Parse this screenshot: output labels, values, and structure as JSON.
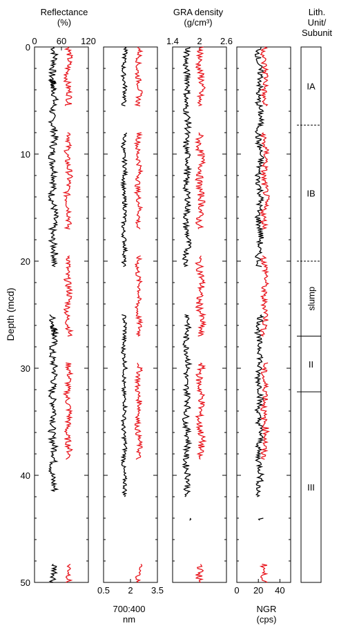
{
  "chart_data": {
    "type": "line",
    "y_axis": {
      "label": "Depth (mcd)",
      "range": [
        0,
        50
      ],
      "ticks": [
        0,
        10,
        20,
        30,
        40,
        50
      ],
      "inverted": true
    },
    "colors": {
      "series_a": "#000000",
      "series_b": "#e8141c"
    },
    "panels": [
      {
        "title_line1": "Reflectance",
        "title_line2": "(%)",
        "axis_position": "top",
        "xrange": [
          0,
          120
        ],
        "ticks": [
          "0",
          "60",
          "120"
        ],
        "tick_values": [
          0,
          60,
          120
        ],
        "black_segments": [
          [
            0,
            4
          ],
          [
            3,
            20.5
          ],
          [
            25,
            27
          ],
          [
            26,
            41.5
          ],
          [
            48.3,
            50
          ]
        ],
        "red_segments": [
          [
            0,
            5.5
          ],
          [
            8,
            17
          ],
          [
            19.5,
            27
          ],
          [
            29.5,
            38.5
          ],
          [
            48.3,
            50
          ]
        ],
        "black_center": 42,
        "black_amp": 8,
        "red_center": 75,
        "red_amp": 7
      },
      {
        "title_line1": "700:400",
        "title_line2": "nm",
        "axis_position": "bottom",
        "xrange": [
          0.5,
          3.5
        ],
        "ticks": [
          "0.5",
          "2",
          "3.5"
        ],
        "tick_values": [
          0.5,
          2,
          3.5
        ],
        "black_segments": [
          [
            0,
            5.5
          ],
          [
            8,
            20.5
          ],
          [
            25,
            42
          ]
        ],
        "red_segments": [
          [
            0,
            5.5
          ],
          [
            8,
            17
          ],
          [
            19.5,
            27
          ],
          [
            29.5,
            38.5
          ],
          [
            48.3,
            50
          ]
        ],
        "black_center": 1.65,
        "black_amp": 0.12,
        "red_center": 2.45,
        "red_amp": 0.15
      },
      {
        "title_line1": "GRA density",
        "title_line2": "(g/cm³)",
        "axis_position": "top",
        "xrange": [
          1.4,
          2.6
        ],
        "ticks": [
          "1.4",
          "2",
          "2.6"
        ],
        "tick_values": [
          1.4,
          2,
          2.6
        ],
        "black_segments": [
          [
            0,
            20.5
          ],
          [
            25,
            42
          ],
          [
            44,
            44.2
          ]
        ],
        "red_segments": [
          [
            0,
            5.5
          ],
          [
            8,
            17
          ],
          [
            19.5,
            27
          ],
          [
            29.5,
            38.5
          ],
          [
            48.3,
            50
          ]
        ],
        "black_center": 1.72,
        "black_amp": 0.07,
        "red_center": 2.02,
        "red_amp": 0.08
      },
      {
        "title_line1": "NGR",
        "title_line2": "(cps)",
        "axis_position": "bottom",
        "xrange": [
          0,
          50
        ],
        "ticks": [
          "0",
          "20",
          "40"
        ],
        "tick_values": [
          0,
          20,
          40
        ],
        "black_segments": [
          [
            0,
            20.5
          ],
          [
            25,
            42
          ],
          [
            44,
            44.2
          ]
        ],
        "red_segments": [
          [
            0,
            5.5
          ],
          [
            8,
            17
          ],
          [
            19.5,
            27
          ],
          [
            29.5,
            38.5
          ],
          [
            48.3,
            50
          ]
        ],
        "black_center": 21,
        "black_amp": 3,
        "red_center": 26,
        "red_amp": 3
      }
    ],
    "lithology": {
      "title_line1": "Lith.",
      "title_line2": "Unit/",
      "title_line3": "Subunit",
      "units": [
        {
          "label": "IA",
          "top": 0,
          "bottom": 7.3,
          "top_style": "solid"
        },
        {
          "label": "IB",
          "top": 7.3,
          "bottom": 20,
          "top_style": "dashed"
        },
        {
          "label": "slump",
          "top": 20,
          "bottom": 27,
          "top_style": "dashed",
          "vertical": true
        },
        {
          "label": "II",
          "top": 27,
          "bottom": 32.2,
          "top_style": "solid"
        },
        {
          "label": "III",
          "top": 32.2,
          "bottom": 50,
          "top_style": "solid"
        }
      ]
    }
  }
}
